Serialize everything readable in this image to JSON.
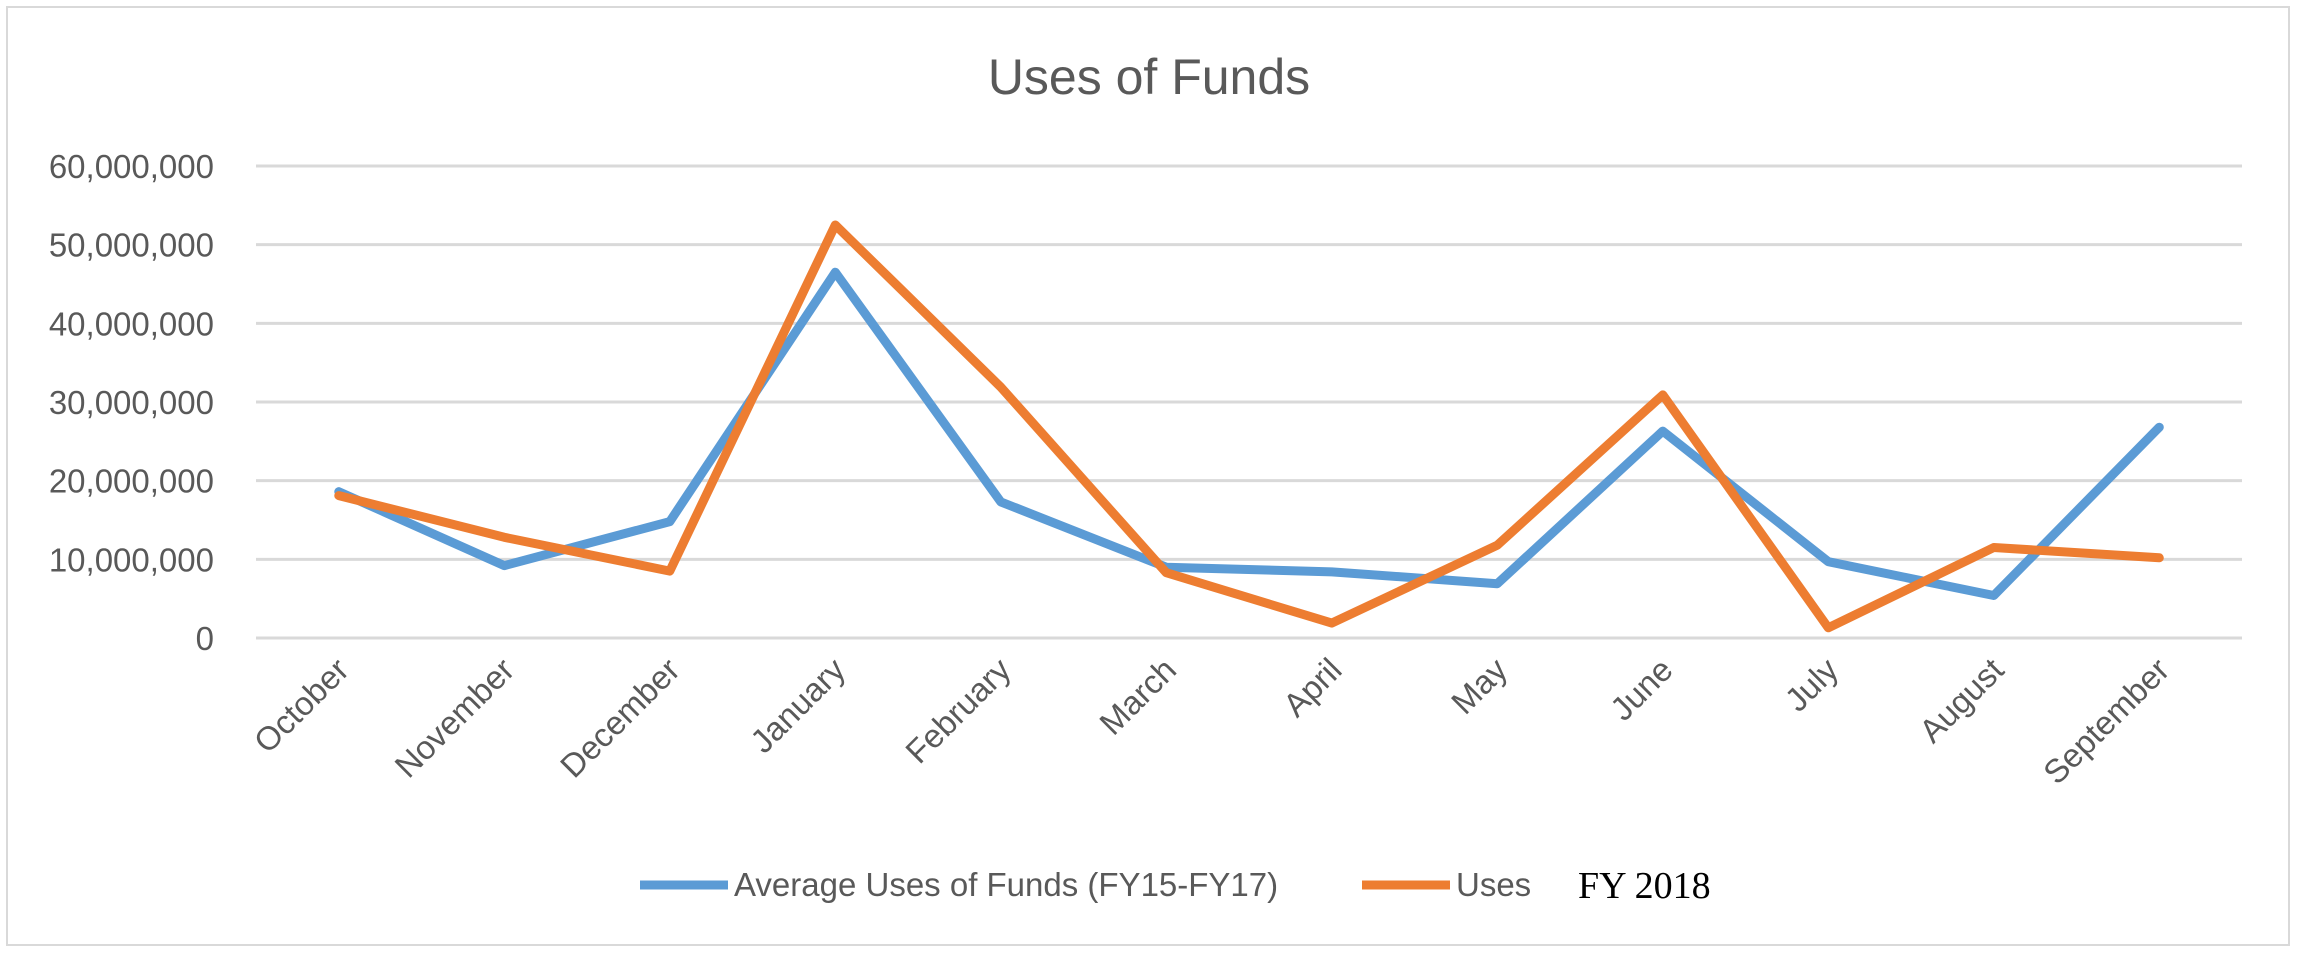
{
  "chart_data": {
    "type": "line",
    "title": "Uses of Funds",
    "xlabel": "",
    "ylabel": "",
    "categories": [
      "October",
      "November",
      "December",
      "January",
      "February",
      "March",
      "April",
      "May",
      "June",
      "July",
      "August",
      "September"
    ],
    "ylim": [
      0,
      60000000
    ],
    "yticks": [
      0,
      10000000,
      20000000,
      30000000,
      40000000,
      50000000,
      60000000
    ],
    "ytick_labels": [
      "0",
      "10,000,000",
      "20,000,000",
      "30,000,000",
      "40,000,000",
      "50,000,000",
      "60,000,000"
    ],
    "grid": true,
    "legend_position": "bottom",
    "series": [
      {
        "name": "Average Uses of Funds (FY15-FY17)",
        "color": "#5b9bd5",
        "values": [
          18600000,
          9200000,
          14800000,
          46500000,
          17300000,
          9000000,
          8400000,
          6900000,
          26300000,
          9700000,
          5400000,
          26800000
        ]
      },
      {
        "name": "Uses",
        "color": "#ed7d31",
        "values": [
          18100000,
          12800000,
          8500000,
          52500000,
          31900000,
          8300000,
          1900000,
          11800000,
          30900000,
          1300000,
          11500000,
          10200000
        ]
      }
    ],
    "legend_extra_text": "FY 2018"
  }
}
